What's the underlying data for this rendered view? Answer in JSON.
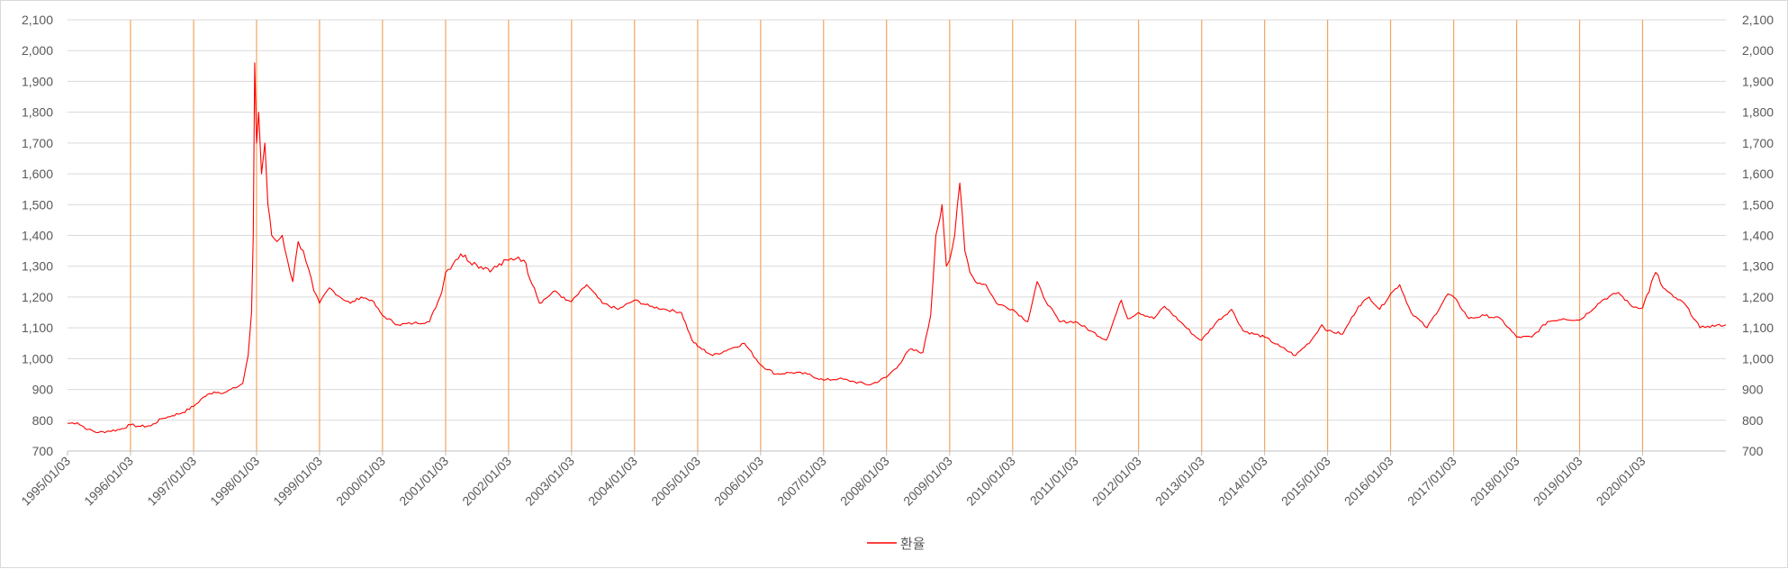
{
  "chart_data": {
    "type": "line",
    "title": "",
    "xlabel": "",
    "ylabel": "",
    "ylim": [
      700,
      2100
    ],
    "y_ticks": [
      "2,100",
      "2,000",
      "1,900",
      "1,800",
      "1,700",
      "1,600",
      "1,500",
      "1,400",
      "1,300",
      "1,200",
      "1,100",
      "1,000",
      "900",
      "800",
      "700"
    ],
    "y_tick_values": [
      2100,
      2000,
      1900,
      1800,
      1700,
      1600,
      1500,
      1400,
      1300,
      1200,
      1100,
      1000,
      900,
      800,
      700
    ],
    "x_tick_labels": [
      "1995/01/03",
      "1996/01/03",
      "1997/01/03",
      "1998/01/03",
      "1999/01/03",
      "2000/01/03",
      "2001/01/03",
      "2002/01/03",
      "2003/01/03",
      "2004/01/03",
      "2005/01/03",
      "2006/01/03",
      "2007/01/03",
      "2008/01/03",
      "2009/01/03",
      "2010/01/03",
      "2011/01/03",
      "2012/01/03",
      "2013/01/03",
      "2014/01/03",
      "2015/01/03",
      "2016/01/03",
      "2017/01/03",
      "2018/01/03",
      "2019/01/03",
      "2020/01/03"
    ],
    "x_range": [
      "1995/01/03",
      "2021/04/30"
    ],
    "grid": "horizontal",
    "vertical_year_lines": true,
    "legend": "bottom",
    "series": [
      {
        "name": "환율",
        "color": "#ff0000",
        "points": [
          [
            "1995/01/03",
            790
          ],
          [
            "1995/03/01",
            792
          ],
          [
            "1995/05/01",
            770
          ],
          [
            "1995/07/01",
            760
          ],
          [
            "1995/09/01",
            765
          ],
          [
            "1995/11/01",
            770
          ],
          [
            "1996/01/03",
            785
          ],
          [
            "1996/03/01",
            780
          ],
          [
            "1996/05/01",
            782
          ],
          [
            "1996/07/01",
            805
          ],
          [
            "1996/09/01",
            815
          ],
          [
            "1996/11/01",
            825
          ],
          [
            "1997/01/03",
            845
          ],
          [
            "1997/03/01",
            875
          ],
          [
            "1997/05/01",
            892
          ],
          [
            "1997/07/01",
            890
          ],
          [
            "1997/09/01",
            905
          ],
          [
            "1997/10/15",
            920
          ],
          [
            "1997/11/15",
            1010
          ],
          [
            "1997/12/05",
            1150
          ],
          [
            "1997/12/15",
            1400
          ],
          [
            "1997/12/23",
            1960
          ],
          [
            "1998/01/03",
            1700
          ],
          [
            "1998/01/15",
            1800
          ],
          [
            "1998/02/01",
            1600
          ],
          [
            "1998/02/20",
            1700
          ],
          [
            "1998/03/10",
            1500
          ],
          [
            "1998/04/01",
            1400
          ],
          [
            "1998/05/01",
            1380
          ],
          [
            "1998/06/01",
            1400
          ],
          [
            "1998/07/01",
            1320
          ],
          [
            "1998/08/01",
            1250
          ],
          [
            "1998/09/01",
            1380
          ],
          [
            "1998/10/01",
            1350
          ],
          [
            "1998/11/01",
            1290
          ],
          [
            "1998/12/01",
            1220
          ],
          [
            "1999/01/03",
            1180
          ],
          [
            "1999/03/01",
            1230
          ],
          [
            "1999/05/01",
            1200
          ],
          [
            "1999/07/01",
            1180
          ],
          [
            "1999/09/01",
            1200
          ],
          [
            "1999/11/01",
            1190
          ],
          [
            "2000/01/03",
            1140
          ],
          [
            "2000/04/01",
            1110
          ],
          [
            "2000/07/01",
            1115
          ],
          [
            "2000/10/01",
            1120
          ],
          [
            "2000/12/01",
            1200
          ],
          [
            "2001/01/03",
            1280
          ],
          [
            "2001/03/01",
            1320
          ],
          [
            "2001/04/01",
            1340
          ],
          [
            "2001/07/01",
            1305
          ],
          [
            "2001/10/01",
            1290
          ],
          [
            "2002/01/03",
            1320
          ],
          [
            "2002/03/01",
            1330
          ],
          [
            "2002/04/01",
            1320
          ],
          [
            "2002/06/01",
            1230
          ],
          [
            "2002/07/01",
            1180
          ],
          [
            "2002/10/01",
            1220
          ],
          [
            "2002/12/01",
            1190
          ],
          [
            "2003/01/03",
            1185
          ],
          [
            "2003/04/01",
            1240
          ],
          [
            "2003/07/01",
            1180
          ],
          [
            "2003/10/01",
            1160
          ],
          [
            "2004/01/03",
            1190
          ],
          [
            "2004/04/01",
            1170
          ],
          [
            "2004/07/01",
            1160
          ],
          [
            "2004/10/01",
            1150
          ],
          [
            "2004/12/01",
            1060
          ],
          [
            "2005/01/03",
            1040
          ],
          [
            "2005/04/01",
            1010
          ],
          [
            "2005/07/01",
            1030
          ],
          [
            "2005/10/01",
            1050
          ],
          [
            "2006/01/03",
            980
          ],
          [
            "2006/04/01",
            950
          ],
          [
            "2006/07/01",
            955
          ],
          [
            "2006/10/01",
            950
          ],
          [
            "2007/01/03",
            930
          ],
          [
            "2007/04/01",
            935
          ],
          [
            "2007/07/01",
            925
          ],
          [
            "2007/10/01",
            915
          ],
          [
            "2008/01/03",
            940
          ],
          [
            "2008/03/15",
            980
          ],
          [
            "2008/05/15",
            1030
          ],
          [
            "2008/08/01",
            1020
          ],
          [
            "2008/09/15",
            1140
          ],
          [
            "2008/10/15",
            1400
          ],
          [
            "2008/11/20",
            1500
          ],
          [
            "2008/12/15",
            1300
          ],
          [
            "2009/01/03",
            1320
          ],
          [
            "2009/02/01",
            1400
          ],
          [
            "2009/03/03",
            1570
          ],
          [
            "2009/04/01",
            1350
          ],
          [
            "2009/05/01",
            1280
          ],
          [
            "2009/06/01",
            1250
          ],
          [
            "2009/08/01",
            1240
          ],
          [
            "2009/10/01",
            1180
          ],
          [
            "2010/01/03",
            1160
          ],
          [
            "2010/04/01",
            1120
          ],
          [
            "2010/05/25",
            1250
          ],
          [
            "2010/07/01",
            1200
          ],
          [
            "2010/10/01",
            1120
          ],
          [
            "2011/01/03",
            1120
          ],
          [
            "2011/04/01",
            1090
          ],
          [
            "2011/07/01",
            1060
          ],
          [
            "2011/09/25",
            1190
          ],
          [
            "2011/11/01",
            1130
          ],
          [
            "2012/01/03",
            1150
          ],
          [
            "2012/04/01",
            1130
          ],
          [
            "2012/06/01",
            1170
          ],
          [
            "2012/09/01",
            1120
          ],
          [
            "2012/12/01",
            1070
          ],
          [
            "2013/01/03",
            1060
          ],
          [
            "2013/04/01",
            1120
          ],
          [
            "2013/06/25",
            1160
          ],
          [
            "2013/09/01",
            1090
          ],
          [
            "2014/01/03",
            1070
          ],
          [
            "2014/04/01",
            1040
          ],
          [
            "2014/07/01",
            1010
          ],
          [
            "2014/10/01",
            1060
          ],
          [
            "2014/12/01",
            1110
          ],
          [
            "2015/01/03",
            1090
          ],
          [
            "2015/04/01",
            1080
          ],
          [
            "2015/07/01",
            1170
          ],
          [
            "2015/09/01",
            1200
          ],
          [
            "2015/11/01",
            1160
          ],
          [
            "2016/01/03",
            1210
          ],
          [
            "2016/02/25",
            1240
          ],
          [
            "2016/05/01",
            1150
          ],
          [
            "2016/08/01",
            1100
          ],
          [
            "2016/12/01",
            1210
          ],
          [
            "2017/01/03",
            1200
          ],
          [
            "2017/04/01",
            1130
          ],
          [
            "2017/07/01",
            1140
          ],
          [
            "2017/10/01",
            1130
          ],
          [
            "2018/01/03",
            1070
          ],
          [
            "2018/04/01",
            1070
          ],
          [
            "2018/07/01",
            1120
          ],
          [
            "2018/10/01",
            1130
          ],
          [
            "2019/01/03",
            1125
          ],
          [
            "2019/05/15",
            1190
          ],
          [
            "2019/08/15",
            1215
          ],
          [
            "2019/11/01",
            1170
          ],
          [
            "2020/01/03",
            1165
          ],
          [
            "2020/03/19",
            1280
          ],
          [
            "2020/05/01",
            1230
          ],
          [
            "2020/07/01",
            1200
          ],
          [
            "2020/09/01",
            1180
          ],
          [
            "2020/12/01",
            1100
          ],
          [
            "2021/01/15",
            1105
          ],
          [
            "2021/04/30",
            1110
          ]
        ]
      }
    ]
  }
}
